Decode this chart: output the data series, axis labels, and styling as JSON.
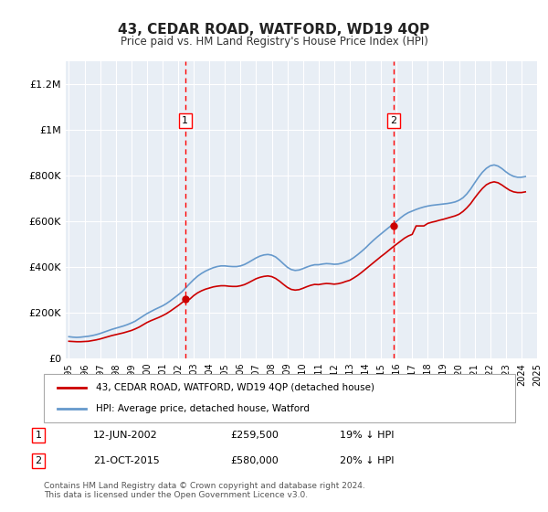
{
  "title": "43, CEDAR ROAD, WATFORD, WD19 4QP",
  "subtitle": "Price paid vs. HM Land Registry's House Price Index (HPI)",
  "background_color": "#f0f4f8",
  "plot_bg_color": "#e8eef5",
  "ylabel_color": "#333333",
  "ylim": [
    0,
    1300000
  ],
  "yticks": [
    0,
    200000,
    400000,
    600000,
    800000,
    1000000,
    1200000
  ],
  "ytick_labels": [
    "£0",
    "£200K",
    "£400K",
    "£600K",
    "£800K",
    "£1M",
    "£1.2M"
  ],
  "xlabel_start_year": 1995,
  "xlabel_end_year": 2025,
  "sale1_date": 2002.45,
  "sale1_price": 259500,
  "sale1_label": "1",
  "sale1_info": "12-JUN-2002    £259,500    19% ↓ HPI",
  "sale2_date": 2015.81,
  "sale2_price": 580000,
  "sale2_label": "2",
  "sale2_info": "21-OCT-2015    £580,000    20% ↓ HPI",
  "red_line_color": "#cc0000",
  "blue_line_color": "#6699cc",
  "legend_label_red": "43, CEDAR ROAD, WATFORD, WD19 4QP (detached house)",
  "legend_label_blue": "HPI: Average price, detached house, Watford",
  "footer": "Contains HM Land Registry data © Crown copyright and database right 2024.\nThis data is licensed under the Open Government Licence v3.0.",
  "hpi_years": [
    1995.0,
    1995.25,
    1995.5,
    1995.75,
    1996.0,
    1996.25,
    1996.5,
    1996.75,
    1997.0,
    1997.25,
    1997.5,
    1997.75,
    1998.0,
    1998.25,
    1998.5,
    1998.75,
    1999.0,
    1999.25,
    1999.5,
    1999.75,
    2000.0,
    2000.25,
    2000.5,
    2000.75,
    2001.0,
    2001.25,
    2001.5,
    2001.75,
    2002.0,
    2002.25,
    2002.5,
    2002.75,
    2003.0,
    2003.25,
    2003.5,
    2003.75,
    2004.0,
    2004.25,
    2004.5,
    2004.75,
    2005.0,
    2005.25,
    2005.5,
    2005.75,
    2006.0,
    2006.25,
    2006.5,
    2006.75,
    2007.0,
    2007.25,
    2007.5,
    2007.75,
    2008.0,
    2008.25,
    2008.5,
    2008.75,
    2009.0,
    2009.25,
    2009.5,
    2009.75,
    2010.0,
    2010.25,
    2010.5,
    2010.75,
    2011.0,
    2011.25,
    2011.5,
    2011.75,
    2012.0,
    2012.25,
    2012.5,
    2012.75,
    2013.0,
    2013.25,
    2013.5,
    2013.75,
    2014.0,
    2014.25,
    2014.5,
    2014.75,
    2015.0,
    2015.25,
    2015.5,
    2015.75,
    2016.0,
    2016.25,
    2016.5,
    2016.75,
    2017.0,
    2017.25,
    2017.5,
    2017.75,
    2018.0,
    2018.25,
    2018.5,
    2018.75,
    2019.0,
    2019.25,
    2019.5,
    2019.75,
    2020.0,
    2020.25,
    2020.5,
    2020.75,
    2021.0,
    2021.25,
    2021.5,
    2021.75,
    2022.0,
    2022.25,
    2022.5,
    2022.75,
    2023.0,
    2023.25,
    2023.5,
    2023.75,
    2024.0,
    2024.25
  ],
  "hpi_values": [
    95000,
    93000,
    92000,
    93000,
    95000,
    97000,
    100000,
    104000,
    109000,
    115000,
    121000,
    127000,
    132000,
    137000,
    142000,
    148000,
    155000,
    163000,
    174000,
    185000,
    196000,
    205000,
    214000,
    222000,
    230000,
    240000,
    252000,
    265000,
    278000,
    292000,
    310000,
    328000,
    345000,
    360000,
    372000,
    382000,
    390000,
    397000,
    402000,
    405000,
    405000,
    403000,
    402000,
    402000,
    405000,
    411000,
    420000,
    430000,
    440000,
    448000,
    453000,
    455000,
    452000,
    444000,
    430000,
    414000,
    399000,
    389000,
    385000,
    387000,
    393000,
    400000,
    406000,
    410000,
    410000,
    413000,
    415000,
    414000,
    412000,
    413000,
    417000,
    423000,
    430000,
    441000,
    454000,
    468000,
    483000,
    500000,
    516000,
    531000,
    545000,
    559000,
    573000,
    586000,
    600000,
    615000,
    628000,
    638000,
    645000,
    652000,
    658000,
    663000,
    667000,
    670000,
    672000,
    674000,
    676000,
    678000,
    681000,
    685000,
    692000,
    703000,
    720000,
    742000,
    768000,
    793000,
    815000,
    832000,
    843000,
    847000,
    842000,
    831000,
    817000,
    805000,
    797000,
    793000,
    793000,
    796000
  ],
  "red_years": [
    1995.0,
    1995.25,
    1995.5,
    1995.75,
    1996.0,
    1996.25,
    1996.5,
    1996.75,
    1997.0,
    1997.25,
    1997.5,
    1997.75,
    1998.0,
    1998.25,
    1998.5,
    1998.75,
    1999.0,
    1999.25,
    1999.5,
    1999.75,
    2000.0,
    2000.25,
    2000.5,
    2000.75,
    2001.0,
    2001.25,
    2001.5,
    2001.75,
    2002.0,
    2002.25,
    2002.5,
    2002.75,
    2003.0,
    2003.25,
    2003.5,
    2003.75,
    2004.0,
    2004.25,
    2004.5,
    2004.75,
    2005.0,
    2005.25,
    2005.5,
    2005.75,
    2006.0,
    2006.25,
    2006.5,
    2006.75,
    2007.0,
    2007.25,
    2007.5,
    2007.75,
    2008.0,
    2008.25,
    2008.5,
    2008.75,
    2009.0,
    2009.25,
    2009.5,
    2009.75,
    2010.0,
    2010.25,
    2010.5,
    2010.75,
    2011.0,
    2011.25,
    2011.5,
    2011.75,
    2012.0,
    2012.25,
    2012.5,
    2012.75,
    2013.0,
    2013.25,
    2013.5,
    2013.75,
    2014.0,
    2014.25,
    2014.5,
    2014.75,
    2015.0,
    2015.25,
    2015.5,
    2015.75,
    2016.0,
    2016.25,
    2016.5,
    2016.75,
    2017.0,
    2017.25,
    2017.5,
    2017.75,
    2018.0,
    2018.25,
    2018.5,
    2018.75,
    2019.0,
    2019.25,
    2019.5,
    2019.75,
    2020.0,
    2020.25,
    2020.5,
    2020.75,
    2021.0,
    2021.25,
    2021.5,
    2021.75,
    2022.0,
    2022.25,
    2022.5,
    2022.75,
    2023.0,
    2023.25,
    2023.5,
    2023.75,
    2024.0,
    2024.25
  ],
  "red_values": [
    75000,
    74000,
    73000,
    73000,
    74000,
    75000,
    78000,
    81000,
    85000,
    90000,
    95000,
    100000,
    104000,
    108000,
    112000,
    117000,
    122000,
    129000,
    137000,
    147000,
    157000,
    165000,
    172000,
    179000,
    187000,
    196000,
    207000,
    219000,
    231000,
    244000,
    259500,
    259500,
    275000,
    287000,
    296000,
    303000,
    308000,
    313000,
    316000,
    318000,
    318000,
    316000,
    315000,
    315000,
    318000,
    323000,
    331000,
    340000,
    349000,
    355000,
    359000,
    361000,
    358000,
    350000,
    338000,
    324000,
    311000,
    302000,
    299000,
    301000,
    307000,
    314000,
    320000,
    324000,
    323000,
    326000,
    328000,
    327000,
    325000,
    327000,
    331000,
    337000,
    342000,
    352000,
    363000,
    376000,
    390000,
    404000,
    418000,
    432000,
    446000,
    459000,
    473000,
    487000,
    500000,
    513000,
    526000,
    536000,
    543000,
    580000,
    580000,
    580000,
    591000,
    596000,
    600000,
    605000,
    609000,
    614000,
    619000,
    624000,
    631000,
    643000,
    659000,
    678000,
    702000,
    724000,
    744000,
    760000,
    769000,
    773000,
    769000,
    759000,
    747000,
    736000,
    729000,
    726000,
    726000,
    729000
  ]
}
